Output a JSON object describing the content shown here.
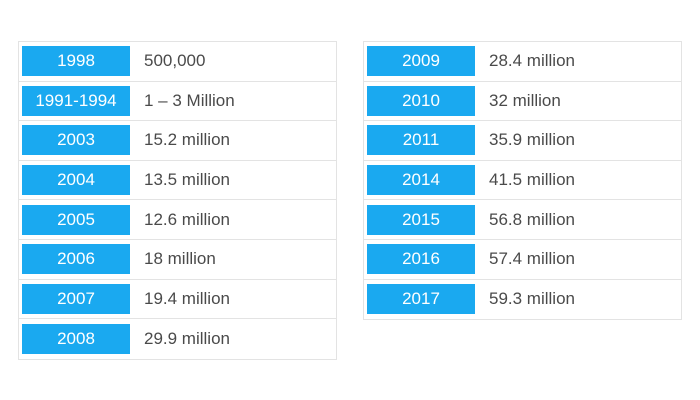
{
  "left_table": {
    "rows": [
      {
        "year": "1998",
        "value": "500,000"
      },
      {
        "year": "1991-1994",
        "value": "1 – 3 Million"
      },
      {
        "year": "2003",
        "value": "15.2 million"
      },
      {
        "year": "2004",
        "value": "13.5 million"
      },
      {
        "year": "2005",
        "value": "12.6 million"
      },
      {
        "year": "2006",
        "value": "18 million"
      },
      {
        "year": "2007",
        "value": "19.4 million"
      },
      {
        "year": "2008",
        "value": "29.9 million"
      }
    ]
  },
  "right_table": {
    "rows": [
      {
        "year": "2009",
        "value": "28.4 million"
      },
      {
        "year": "2010",
        "value": "32 million"
      },
      {
        "year": "2011",
        "value": "35.9 million"
      },
      {
        "year": "2014",
        "value": "41.5 million"
      },
      {
        "year": "2015",
        "value": "56.8 million"
      },
      {
        "year": "2016",
        "value": "57.4 million"
      },
      {
        "year": "2017",
        "value": "59.3 million"
      }
    ]
  },
  "colors": {
    "year_cell_background": "#1aa9f0",
    "year_text": "#ffffff",
    "value_text": "#4a4a4a",
    "border": "#e3e3e3"
  }
}
